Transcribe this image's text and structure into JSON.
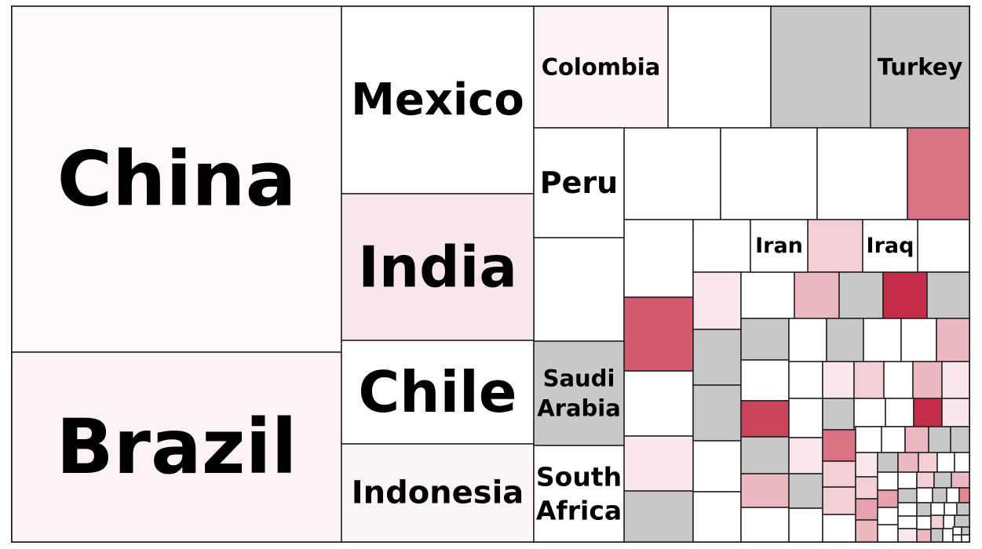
{
  "chart_data": {
    "type": "treemap",
    "title": "",
    "colors": {
      "no_data": "#c8c8c8",
      "scale_low": "#ffffff",
      "scale_high": "#be1432",
      "border": "#1e1e1e"
    },
    "tiles": [
      {
        "name": "China",
        "label": "China",
        "value": 29.15,
        "intensity": 0.02
      },
      {
        "name": "Brazil",
        "label": "Brazil",
        "value": 15.86,
        "intensity": 0.05
      },
      {
        "name": "Mexico",
        "label": "Mexico",
        "value": 6.93,
        "intensity": 0.0
      },
      {
        "name": "India",
        "label": "India",
        "value": 5.5,
        "intensity": 0.1
      },
      {
        "name": "Chile",
        "label": "Chile",
        "value": 3.79,
        "intensity": 0.0
      },
      {
        "name": "Indonesia",
        "label": "Indonesia",
        "value": 3.68,
        "intensity": 0.04
      },
      {
        "name": "Colombia",
        "label": "Colombia",
        "value": 2.29,
        "intensity": 0.05
      },
      {
        "name": "Peru",
        "label": "Peru",
        "value": 1.55,
        "intensity": 0.0
      },
      {
        "name": "Saudi Arabia",
        "label": "Saudi\nArabia",
        "value": 1.52,
        "nodata": true
      },
      {
        "name": "South Africa",
        "label": "South\nAfrica",
        "value": 1.42,
        "intensity": 0.0
      },
      {
        "name": "Turkey",
        "label": "Turkey",
        "value": 1.67,
        "nodata": true
      },
      {
        "name": "Iran",
        "label": "Iran",
        "value": 0.48,
        "intensity": 0.0
      },
      {
        "name": "Iraq",
        "label": "Iraq",
        "value": 0.48,
        "intensity": 0.0
      }
    ]
  }
}
